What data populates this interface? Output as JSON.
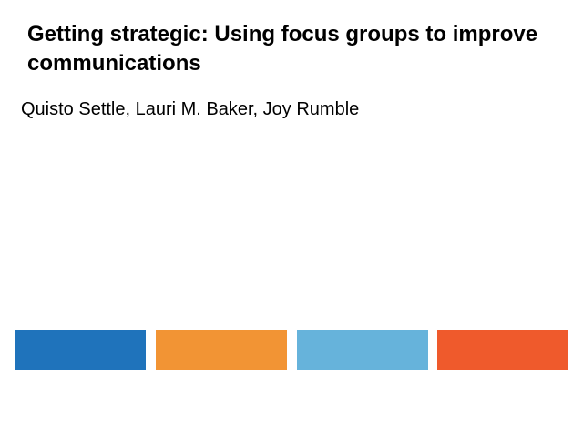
{
  "slide": {
    "title": "Getting strategic: Using focus groups to improve communications",
    "authors": "Quisto Settle, Lauri M. Baker, Joy Rumble"
  },
  "colors": {
    "background": "#ffffff",
    "text": "#000000",
    "blocks": [
      "#1f73bb",
      "#f29434",
      "#66b3db",
      "#ef5a2c"
    ]
  }
}
